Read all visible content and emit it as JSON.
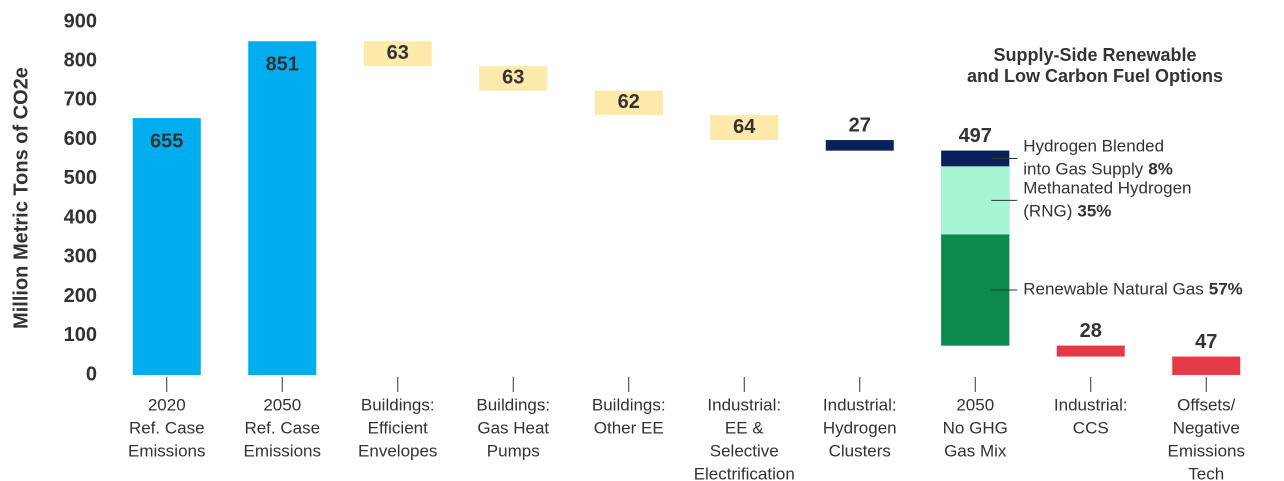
{
  "chart_data": {
    "type": "waterfall",
    "ylabel": "Million Metric Tons of CO2e",
    "annotation": [
      "Supply-Side Renewable",
      "and Low Carbon Fuel Options"
    ],
    "categories": [
      [
        "2020",
        "Ref. Case",
        "Emissions"
      ],
      [
        "2050",
        "Ref. Case",
        "Emissions"
      ],
      [
        "Buildings:",
        "Efficient",
        "Envelopes"
      ],
      [
        "Buildings:",
        "Gas Heat",
        "Pumps"
      ],
      [
        "Buildings:",
        "Other EE"
      ],
      [
        "Industrial:",
        "EE &",
        "Selective",
        "Electrification"
      ],
      [
        "Industrial:",
        "Hydrogen",
        "Clusters"
      ],
      [
        "2050",
        "No GHG",
        "Gas Mix"
      ],
      [
        "Industrial:",
        "CCS"
      ],
      [
        "Offsets/",
        "Negative",
        "Emissions",
        "Tech"
      ]
    ],
    "values": [
      655,
      851,
      63,
      63,
      62,
      64,
      27,
      497,
      28,
      47
    ],
    "kinds": [
      "total",
      "total",
      "decrease",
      "decrease",
      "decrease",
      "decrease",
      "decrease",
      "decrease",
      "decrease",
      "decrease"
    ],
    "colors": [
      "#00aeef",
      "#00aeef",
      "#fde9a9",
      "#fde9a9",
      "#fde9a9",
      "#fde9a9",
      "#0a1f5c",
      "#0b8a4c",
      "#e63946",
      "#e63946"
    ],
    "ylim": [
      0,
      900
    ],
    "yticks": [
      0,
      100,
      200,
      300,
      400,
      500,
      600,
      700,
      800,
      900
    ],
    "grid": false,
    "stack": {
      "index": 7,
      "names": [
        [
          "Renewable Natural Gas"
        ],
        [
          "Methanated Hydrogen",
          "(RNG)"
        ],
        [
          "Hydrogen Blended",
          "into Gas Supply"
        ]
      ],
      "colors": [
        "#0b8a4c",
        "#a8f5d4",
        "#0a1f5c"
      ],
      "values": [
        57,
        35,
        8
      ],
      "value_labels": [
        "57%",
        "35%",
        "8%"
      ]
    }
  }
}
